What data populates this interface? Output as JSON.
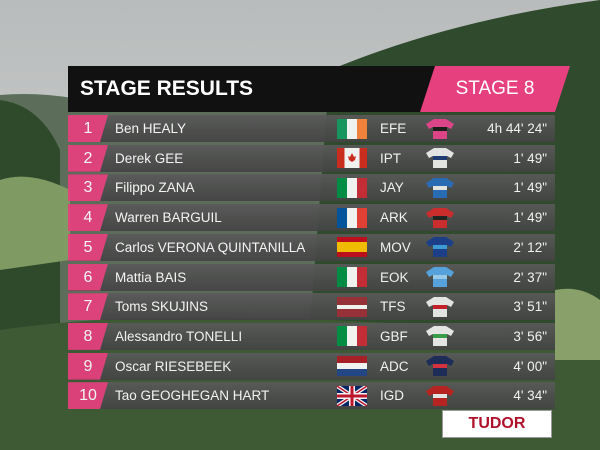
{
  "header": {
    "title": "STAGE RESULTS",
    "stage": "STAGE 8"
  },
  "table": {
    "rows": [
      {
        "rank": 1,
        "rider": "Ben HEALY",
        "team": "EFE",
        "time": "4h 44' 24\""
      },
      {
        "rank": 2,
        "rider": "Derek GEE",
        "team": "IPT",
        "time": "1' 49\""
      },
      {
        "rank": 3,
        "rider": "Filippo ZANA",
        "team": "JAY",
        "time": "1' 49\""
      },
      {
        "rank": 4,
        "rider": "Warren BARGUIL",
        "team": "ARK",
        "time": "1' 49\""
      },
      {
        "rank": 5,
        "rider": "Carlos VERONA QUINTANILLA",
        "team": "MOV",
        "time": "2' 12\""
      },
      {
        "rank": 6,
        "rider": "Mattia BAIS",
        "team": "EOK",
        "time": "2' 37\""
      },
      {
        "rank": 7,
        "rider": "Toms SKUJINS",
        "team": "TFS",
        "time": "3' 51\""
      },
      {
        "rank": 8,
        "rider": "Alessandro TONELLI",
        "team": "GBF",
        "time": "3' 56\""
      },
      {
        "rank": 9,
        "rider": "Oscar RIESEBEEK",
        "team": "ADC",
        "time": "4' 00\""
      },
      {
        "rank": 10,
        "rider": "Tao GEOGHEGAN HART",
        "team": "IGD",
        "time": "4' 34\""
      }
    ]
  },
  "sponsor": "TUDOR"
}
